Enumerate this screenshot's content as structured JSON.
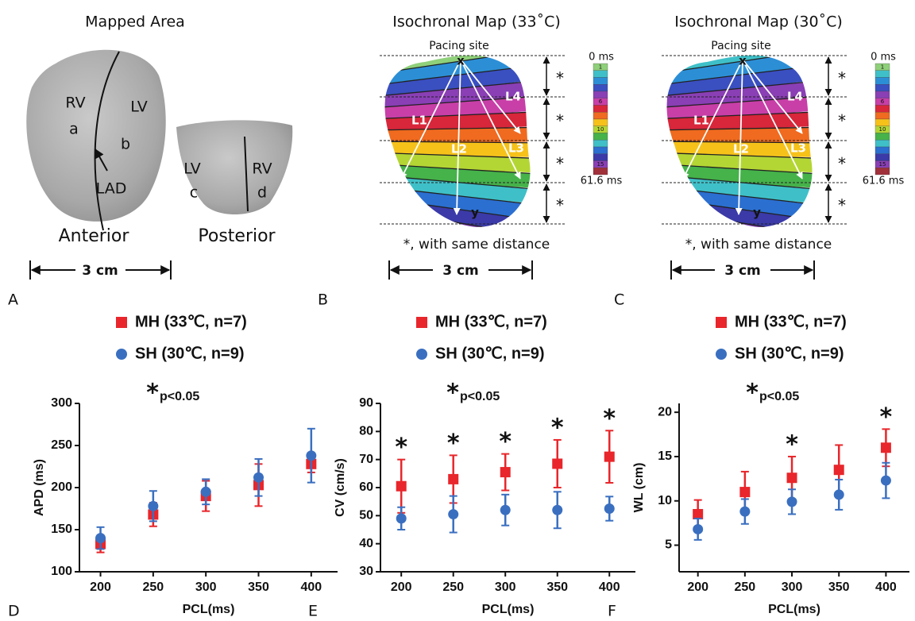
{
  "panels": [
    {
      "label": "A",
      "title": "Mapped Area",
      "views": [
        "Anterior",
        "Posterior"
      ],
      "regions": [
        "RV",
        "a",
        "LV",
        "b",
        "LAD",
        "LV",
        "c",
        "RV",
        "d"
      ],
      "scale": "3 cm"
    },
    {
      "label": "B",
      "title": "Isochronal Map (33˚C)",
      "pacing": "Pacing site",
      "start": "x",
      "end": "y",
      "lines": [
        "L1",
        "L2",
        "L3",
        "L4"
      ],
      "distance_marks": [
        "*",
        "*",
        "*",
        "*"
      ],
      "note": "*, with same distance",
      "colorbar": {
        "min": "0 ms",
        "max": "61.6 ms",
        "ticks": [
          "1",
          "6",
          "10",
          "15"
        ]
      },
      "scale": "3 cm"
    },
    {
      "label": "C",
      "title": "Isochronal Map (30˚C)",
      "pacing": "Pacing site",
      "start": "x",
      "end": "y",
      "lines": [
        "L1",
        "L2",
        "L3",
        "L4"
      ],
      "distance_marks": [
        "*",
        "*",
        "*",
        "*"
      ],
      "note": "*, with same distance",
      "colorbar": {
        "min": "0 ms",
        "max": "61.6 ms",
        "ticks": [
          "1",
          "6",
          "10",
          "15"
        ]
      },
      "scale": "3 cm"
    }
  ],
  "chart_data": [
    {
      "type": "errorbar",
      "panel_label": "D",
      "xlabel": "PCL(ms)",
      "ylabel": "APD (ms)",
      "significance": {
        "symbol": "*",
        "text": "p<0.05"
      },
      "x": [
        200,
        250,
        300,
        350,
        400
      ],
      "xlim": [
        180,
        425
      ],
      "xticks": [
        200,
        250,
        300,
        350,
        400
      ],
      "ylim": [
        100,
        300
      ],
      "yticks": [
        100,
        150,
        200,
        250,
        300
      ],
      "series": [
        {
          "name": "MH (33℃, n=7)",
          "color": "#e8262b",
          "marker": "square",
          "values": [
            133,
            168,
            190,
            203,
            228
          ],
          "errors": [
            10,
            14,
            18,
            25,
            10
          ]
        },
        {
          "name": "SH (30℃, n=9)",
          "color": "#3a6fc0",
          "marker": "circle",
          "values": [
            140,
            178,
            195,
            212,
            238
          ],
          "errors": [
            13,
            18,
            15,
            22,
            32
          ]
        }
      ],
      "annotations": []
    },
    {
      "type": "errorbar",
      "panel_label": "E",
      "xlabel": "PCL(ms)",
      "ylabel": "CV (cm/s)",
      "significance": {
        "symbol": "*",
        "text": "p<0.05"
      },
      "x": [
        200,
        250,
        300,
        350,
        400
      ],
      "xlim": [
        180,
        425
      ],
      "xticks": [
        200,
        250,
        300,
        350,
        400
      ],
      "ylim": [
        30,
        90
      ],
      "yticks": [
        30,
        40,
        50,
        60,
        70,
        80,
        90
      ],
      "series": [
        {
          "name": "MH (33℃, n=7)",
          "color": "#e8262b",
          "marker": "square",
          "values": [
            60.5,
            63,
            65.5,
            68.5,
            71
          ],
          "errors": [
            9.5,
            8.5,
            6.5,
            8.5,
            9.3
          ]
        },
        {
          "name": "SH (30℃, n=9)",
          "color": "#3a6fc0",
          "marker": "circle",
          "values": [
            49,
            50.5,
            52,
            52,
            52.5
          ],
          "errors": [
            4,
            6.5,
            5.5,
            6.5,
            4.3
          ]
        }
      ],
      "annotations": [
        {
          "x": 200,
          "text": "*"
        },
        {
          "x": 250,
          "text": "*"
        },
        {
          "x": 300,
          "text": "*"
        },
        {
          "x": 350,
          "text": "*"
        },
        {
          "x": 400,
          "text": "*"
        }
      ]
    },
    {
      "type": "errorbar",
      "panel_label": "F",
      "xlabel": "PCL(ms)",
      "ylabel": "WL (cm)",
      "significance": {
        "symbol": "*",
        "text": "p<0.05"
      },
      "x": [
        200,
        250,
        300,
        350,
        400
      ],
      "xlim": [
        180,
        425
      ],
      "xticks": [
        200,
        250,
        300,
        350,
        400
      ],
      "ylim": [
        2,
        21
      ],
      "yticks": [
        5,
        10,
        15,
        20
      ],
      "series": [
        {
          "name": "MH (33℃, n=7)",
          "color": "#e8262b",
          "marker": "square",
          "values": [
            8.5,
            11,
            12.6,
            13.5,
            16
          ],
          "errors": [
            1.6,
            2.3,
            2.4,
            2.8,
            2.1
          ]
        },
        {
          "name": "SH (30℃, n=9)",
          "color": "#3a6fc0",
          "marker": "circle",
          "values": [
            6.8,
            8.8,
            9.9,
            10.7,
            12.3
          ],
          "errors": [
            1.2,
            1.4,
            1.4,
            1.7,
            2.0
          ]
        }
      ],
      "annotations": [
        {
          "x": 300,
          "text": "*"
        },
        {
          "x": 400,
          "text": "*"
        }
      ]
    }
  ]
}
